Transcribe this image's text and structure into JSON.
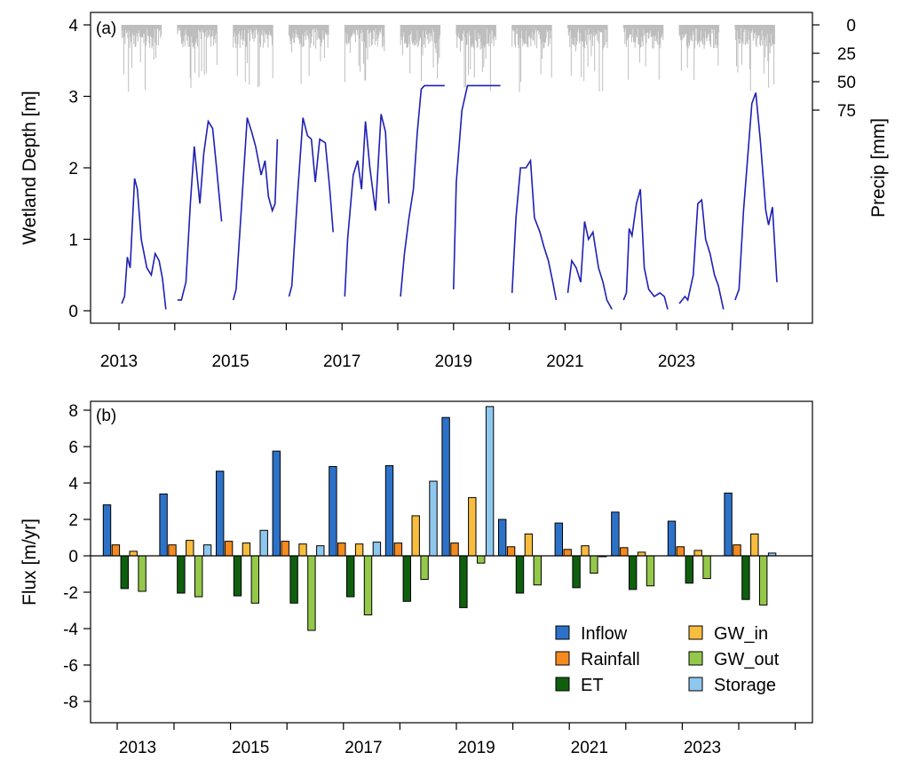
{
  "chart_data": [
    {
      "panel_label": "(a)",
      "type": "line",
      "ylabel": "Wetland Depth [m]",
      "y2label": "Precip [mm]",
      "x_ticks": [
        "2013",
        "2015",
        "2017",
        "2019",
        "2021",
        "2023"
      ],
      "y_ticks": [
        "0",
        "1",
        "2",
        "3",
        "4"
      ],
      "y2_ticks": [
        "0",
        "25",
        "50",
        "75"
      ],
      "ylim": [
        0,
        4
      ],
      "y2lim": [
        0,
        150
      ],
      "line_color": "#1f1fb4",
      "precip_color": "#bdbdbd",
      "series": [
        {
          "x": [
            2013.05,
            2013.1,
            2013.15,
            2013.2,
            2013.28,
            2013.33,
            2013.4,
            2013.5,
            2013.58,
            2013.65,
            2013.72,
            2013.78,
            2013.84
          ],
          "y": [
            0.1,
            0.2,
            0.75,
            0.6,
            1.85,
            1.7,
            1.0,
            0.6,
            0.5,
            0.8,
            0.7,
            0.45,
            0.02
          ]
        },
        {
          "x": [
            2014.05,
            2014.12,
            2014.2,
            2014.28,
            2014.35,
            2014.45,
            2014.52,
            2014.6,
            2014.68,
            2014.75,
            2014.84
          ],
          "y": [
            0.15,
            0.15,
            0.4,
            1.5,
            2.3,
            1.5,
            2.2,
            2.65,
            2.55,
            2.0,
            1.25
          ]
        },
        {
          "x": [
            2015.05,
            2015.1,
            2015.2,
            2015.3,
            2015.38,
            2015.45,
            2015.55,
            2015.62,
            2015.68,
            2015.75,
            2015.8,
            2015.84
          ],
          "y": [
            0.15,
            0.3,
            1.5,
            2.7,
            2.5,
            2.3,
            1.9,
            2.1,
            1.6,
            1.4,
            1.5,
            2.4
          ]
        },
        {
          "x": [
            2016.05,
            2016.1,
            2016.2,
            2016.3,
            2016.38,
            2016.45,
            2016.52,
            2016.6,
            2016.7,
            2016.78,
            2016.84
          ],
          "y": [
            0.2,
            0.35,
            1.6,
            2.7,
            2.45,
            2.4,
            1.8,
            2.4,
            2.35,
            1.7,
            1.1
          ]
        },
        {
          "x": [
            2017.05,
            2017.1,
            2017.2,
            2017.28,
            2017.35,
            2017.42,
            2017.5,
            2017.55,
            2017.6,
            2017.7,
            2017.78,
            2017.84
          ],
          "y": [
            0.2,
            1.0,
            1.9,
            2.1,
            1.7,
            2.65,
            2.0,
            1.7,
            1.4,
            2.75,
            2.5,
            1.5
          ]
        },
        {
          "x": [
            2018.05,
            2018.12,
            2018.2,
            2018.28,
            2018.35,
            2018.42,
            2018.48,
            2018.84
          ],
          "y": [
            0.2,
            0.8,
            1.3,
            1.7,
            2.5,
            3.1,
            3.15,
            3.15
          ]
        },
        {
          "x": [
            2019.0,
            2019.05,
            2019.15,
            2019.25,
            2019.3,
            2019.84
          ],
          "y": [
            0.3,
            1.8,
            2.8,
            3.15,
            3.15,
            3.15
          ]
        },
        {
          "x": [
            2020.05,
            2020.12,
            2020.2,
            2020.3,
            2020.38,
            2020.45,
            2020.55,
            2020.62,
            2020.7,
            2020.78,
            2020.84
          ],
          "y": [
            0.25,
            1.3,
            2.0,
            2.0,
            2.1,
            1.3,
            1.1,
            0.9,
            0.7,
            0.4,
            0.15
          ]
        },
        {
          "x": [
            2021.05,
            2021.12,
            2021.2,
            2021.28,
            2021.35,
            2021.42,
            2021.5,
            2021.6,
            2021.68,
            2021.75,
            2021.84
          ],
          "y": [
            0.25,
            0.7,
            0.6,
            0.4,
            1.25,
            1.0,
            1.1,
            0.6,
            0.4,
            0.15,
            0.02
          ]
        },
        {
          "x": [
            2022.05,
            2022.1,
            2022.15,
            2022.2,
            2022.28,
            2022.35,
            2022.42,
            2022.5,
            2022.6,
            2022.7,
            2022.78,
            2022.84
          ],
          "y": [
            0.15,
            0.25,
            1.15,
            1.05,
            1.5,
            1.7,
            0.6,
            0.3,
            0.2,
            0.25,
            0.2,
            0.02
          ]
        },
        {
          "x": [
            2023.05,
            2023.1,
            2023.15,
            2023.2,
            2023.3,
            2023.38,
            2023.45,
            2023.52,
            2023.6,
            2023.68,
            2023.75,
            2023.84
          ],
          "y": [
            0.1,
            0.15,
            0.2,
            0.15,
            0.5,
            1.5,
            1.55,
            1.0,
            0.8,
            0.5,
            0.35,
            0.02
          ]
        },
        {
          "x": [
            2024.05,
            2024.12,
            2024.2,
            2024.28,
            2024.35,
            2024.42,
            2024.5,
            2024.6,
            2024.65,
            2024.72,
            2024.8
          ],
          "y": [
            0.15,
            0.3,
            1.4,
            2.2,
            2.9,
            3.05,
            2.4,
            1.4,
            1.2,
            1.45,
            0.4
          ]
        }
      ]
    },
    {
      "panel_label": "(b)",
      "type": "bar",
      "ylabel": "Flux [m/yr]",
      "ylim": [
        -8.5,
        8.5
      ],
      "y_ticks": [
        "8",
        "6",
        "4",
        "2",
        "0",
        "-2",
        "-4",
        "-6",
        "-8"
      ],
      "x_ticks": [
        "2013",
        "2015",
        "2017",
        "2019",
        "2021",
        "2023"
      ],
      "categories": [
        "2013",
        "2014",
        "2015",
        "2016",
        "2017",
        "2018",
        "2019",
        "2020",
        "2021",
        "2022",
        "2023",
        "2024"
      ],
      "series": [
        {
          "name": "Inflow",
          "color": "#2d72c9",
          "values": [
            2.8,
            3.4,
            4.65,
            5.75,
            4.9,
            4.95,
            7.6,
            2.0,
            1.8,
            2.4,
            1.9,
            3.45
          ]
        },
        {
          "name": "Rainfall",
          "color": "#f58a1f",
          "values": [
            0.6,
            0.6,
            0.8,
            0.8,
            0.7,
            0.7,
            0.7,
            0.5,
            0.35,
            0.45,
            0.5,
            0.6
          ]
        },
        {
          "name": "ET",
          "color": "#0f5f0f",
          "values": [
            -1.8,
            -2.05,
            -2.2,
            -2.6,
            -2.25,
            -2.5,
            -2.85,
            -2.05,
            -1.75,
            -1.85,
            -1.5,
            -2.4
          ]
        },
        {
          "name": "GW_in",
          "color": "#f8bd3e",
          "values": [
            0.25,
            0.85,
            0.7,
            0.65,
            0.65,
            2.2,
            3.2,
            1.2,
            0.55,
            0.2,
            0.3,
            1.2
          ]
        },
        {
          "name": "GW_out",
          "color": "#94c84a",
          "values": [
            -1.95,
            -2.25,
            -2.6,
            -4.1,
            -3.25,
            -1.3,
            -0.4,
            -1.6,
            -0.95,
            -1.65,
            -1.25,
            -2.7
          ]
        },
        {
          "name": "Storage",
          "color": "#8fc8ee",
          "values": [
            0,
            0.6,
            1.4,
            0.55,
            0.75,
            4.1,
            8.2,
            0,
            -0.05,
            0,
            0,
            0.15
          ]
        }
      ],
      "legend": "bottom-right"
    }
  ]
}
